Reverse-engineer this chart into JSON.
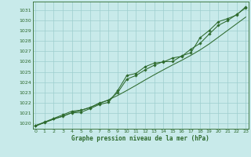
{
  "title": "Graphe pression niveau de la mer (hPa)",
  "bg_color": "#c8eaea",
  "grid_color": "#9ecece",
  "line_color": "#2d6a2d",
  "xlim": [
    -0.3,
    23.3
  ],
  "ylim": [
    1019.5,
    1031.8
  ],
  "yticks": [
    1020,
    1021,
    1022,
    1023,
    1024,
    1025,
    1026,
    1027,
    1028,
    1029,
    1030,
    1031
  ],
  "xticks": [
    0,
    1,
    2,
    3,
    4,
    5,
    6,
    7,
    8,
    9,
    10,
    11,
    12,
    13,
    14,
    15,
    16,
    17,
    18,
    19,
    20,
    21,
    22,
    23
  ],
  "x": [
    0,
    1,
    2,
    3,
    4,
    5,
    6,
    7,
    8,
    9,
    10,
    11,
    12,
    13,
    14,
    15,
    16,
    17,
    18,
    19,
    20,
    21,
    22,
    23
  ],
  "y_main": [
    1019.8,
    1020.1,
    1020.45,
    1020.7,
    1021.05,
    1021.1,
    1021.45,
    1021.85,
    1022.05,
    1023.2,
    1024.65,
    1024.85,
    1025.5,
    1025.85,
    1025.95,
    1026.35,
    1026.5,
    1027.2,
    1027.75,
    1028.65,
    1029.5,
    1029.95,
    1030.55,
    1031.2
  ],
  "y_line2": [
    1019.8,
    1020.15,
    1020.5,
    1020.85,
    1021.2,
    1021.3,
    1021.55,
    1022.0,
    1022.25,
    1023.0,
    1024.3,
    1024.65,
    1025.2,
    1025.65,
    1026.0,
    1026.0,
    1026.55,
    1026.85,
    1028.3,
    1029.0,
    1029.85,
    1030.15,
    1030.5,
    1031.3
  ],
  "y_smooth": [
    1019.75,
    1020.1,
    1020.42,
    1020.73,
    1021.05,
    1021.28,
    1021.58,
    1021.93,
    1022.3,
    1022.72,
    1023.2,
    1023.7,
    1024.22,
    1024.72,
    1025.2,
    1025.67,
    1026.12,
    1026.6,
    1027.12,
    1027.7,
    1028.35,
    1029.0,
    1029.65,
    1030.3
  ]
}
